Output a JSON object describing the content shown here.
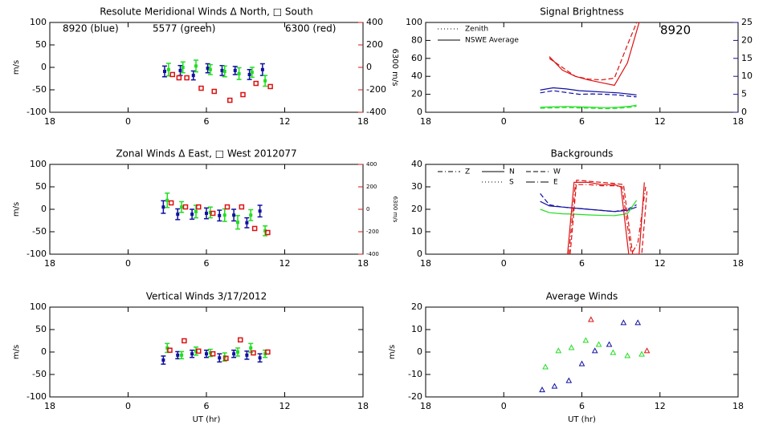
{
  "chart_data": [
    {
      "type": "scatter",
      "title": "Resolute Meridional Winds Δ North, □ South",
      "ylabel": "m/s",
      "y2label": "6300 m/s",
      "xlim": [
        -6,
        18
      ],
      "xticks": [
        {
          "value": -6,
          "label": "18"
        },
        0,
        6,
        12,
        18
      ],
      "ylim": [
        -100,
        100
      ],
      "yticks": [
        -100,
        -50,
        0,
        50,
        100
      ],
      "y2lim": [
        -400,
        400
      ],
      "y2ticks": [
        -400,
        -200,
        0,
        200,
        400
      ],
      "y2color": "#dd1111",
      "annotations": [
        {
          "text": "8920 (blue)",
          "color": "#1010a0"
        },
        {
          "text": "5577 (green)",
          "color": "#22dd22"
        },
        {
          "text": "6300 (red)",
          "color": "#dd1111"
        }
      ],
      "series": [
        {
          "color": "#1010a0",
          "marker": "square",
          "x": [
            2.8,
            4.0,
            5.0,
            6.1,
            7.2,
            8.2,
            9.3,
            10.3
          ],
          "values": [
            -9,
            -7,
            -18,
            -2,
            -7,
            -7,
            -16,
            -5
          ],
          "errors": [
            12,
            11,
            10,
            10,
            11,
            9,
            11,
            13
          ]
        },
        {
          "color": "#22dd22",
          "marker": "square",
          "x": [
            3.1,
            4.2,
            5.2,
            6.3,
            7.4,
            8.5,
            9.5,
            10.5
          ],
          "values": [
            -5,
            0,
            3,
            -5,
            -9,
            -14,
            -11,
            -30
          ],
          "errors": [
            14,
            12,
            13,
            11,
            12,
            13,
            11,
            12
          ]
        },
        {
          "color": "#dd1111",
          "marker": "square-open",
          "axis": "y2",
          "x": [
            3.4,
            3.9,
            4.5,
            5.6,
            6.6,
            7.8,
            8.8,
            9.8,
            10.9
          ],
          "values": [
            -64,
            -93,
            -93,
            -186,
            -214,
            -293,
            -243,
            -143,
            -171
          ]
        }
      ]
    },
    {
      "type": "line",
      "title": "Signal Brightness",
      "xlim": [
        -6,
        18
      ],
      "xticks": [
        {
          "value": -6,
          "label": "18"
        },
        0,
        6,
        12,
        18
      ],
      "ylim": [
        0,
        100
      ],
      "yticks": [
        0,
        20,
        40,
        60,
        80,
        100
      ],
      "y2lim": [
        0,
        25
      ],
      "y2ticks": [
        0,
        5,
        10,
        15,
        20,
        25
      ],
      "y2color": "#1010a0",
      "legend": [
        {
          "label": "Zenith",
          "dash": "dotted"
        },
        {
          "label": "NSWE Average",
          "dash": "solid"
        }
      ],
      "annotations": [
        {
          "text": "8920",
          "color": "#1010a0"
        }
      ],
      "series": [
        {
          "color": "#dd1111",
          "dash": "solid",
          "x": [
            3.5,
            4.5,
            5.5,
            6.5,
            7.5,
            8.5,
            9.5,
            10.5
          ],
          "values": [
            62,
            47,
            40,
            36,
            33,
            30,
            55,
            105
          ]
        },
        {
          "color": "#dd1111",
          "dash": "dashed",
          "x": [
            3.5,
            4.5,
            5.5,
            6.5,
            7.5,
            8.5,
            9.5,
            10.5
          ],
          "values": [
            60,
            50,
            40,
            37,
            36,
            38,
            75,
            110
          ]
        },
        {
          "color": "#1010a0",
          "dash": "solid",
          "axis": "y2",
          "x": [
            2.8,
            3.8,
            4.8,
            5.8,
            6.8,
            7.8,
            8.8,
            9.8,
            10.2
          ],
          "values": [
            6.2,
            6.8,
            6.5,
            6.0,
            5.8,
            5.6,
            5.4,
            5.0,
            4.8
          ]
        },
        {
          "color": "#1010a0",
          "dash": "dashed",
          "axis": "y2",
          "x": [
            2.8,
            3.8,
            4.8,
            5.8,
            6.8,
            7.8,
            8.8,
            9.8,
            10.2
          ],
          "values": [
            5.4,
            6.0,
            5.5,
            5.0,
            5.1,
            5.0,
            4.8,
            4.4,
            4.3
          ]
        },
        {
          "color": "#22dd22",
          "dash": "solid",
          "axis": "y2",
          "x": [
            2.8,
            3.8,
            4.8,
            5.8,
            6.8,
            7.8,
            8.8,
            9.8,
            10.2
          ],
          "values": [
            1.4,
            1.5,
            1.6,
            1.5,
            1.4,
            1.3,
            1.4,
            1.7,
            2.0
          ]
        },
        {
          "color": "#22dd22",
          "dash": "dashed",
          "axis": "y2",
          "x": [
            2.8,
            3.8,
            4.8,
            5.8,
            6.8,
            7.8,
            8.8,
            9.8,
            10.2
          ],
          "values": [
            1.1,
            1.2,
            1.3,
            1.2,
            1.1,
            1.0,
            1.1,
            1.4,
            1.7
          ]
        }
      ]
    },
    {
      "type": "scatter",
      "title": "Zonal Winds Δ East, □ West 2012077",
      "ylabel": "m/s",
      "y2label": "6300 m/s",
      "xlim": [
        -6,
        18
      ],
      "xticks": [
        {
          "value": -6,
          "label": "18"
        },
        0,
        6,
        12,
        18
      ],
      "ylim": [
        -100,
        100
      ],
      "yticks": [
        -100,
        -50,
        0,
        50,
        100
      ],
      "y2lim": [
        -400,
        400
      ],
      "y2ticks": [
        -400,
        -200,
        0,
        200,
        400
      ],
      "y2color": "#dd1111",
      "series": [
        {
          "color": "#1010a0",
          "marker": "square",
          "x": [
            2.7,
            3.8,
            4.9,
            6.0,
            7.0,
            8.1,
            9.1,
            10.1
          ],
          "values": [
            5,
            -11,
            -11,
            -9,
            -14,
            -13,
            -30,
            -4
          ],
          "errors": [
            14,
            12,
            11,
            12,
            12,
            13,
            11,
            13
          ]
        },
        {
          "color": "#22dd22",
          "marker": "square",
          "x": [
            3.0,
            4.1,
            5.2,
            6.3,
            7.4,
            8.4,
            9.4,
            10.5
          ],
          "values": [
            20,
            5,
            -5,
            -7,
            -13,
            -29,
            -13,
            -48
          ],
          "errors": [
            16,
            12,
            14,
            12,
            14,
            15,
            12,
            11
          ]
        },
        {
          "color": "#dd1111",
          "marker": "square-open",
          "axis": "y2",
          "x": [
            3.3,
            4.4,
            5.4,
            6.5,
            7.6,
            8.7,
            9.7,
            10.7
          ],
          "values": [
            57,
            21,
            21,
            -36,
            21,
            21,
            -171,
            -207
          ]
        }
      ]
    },
    {
      "type": "line",
      "title": "Backgrounds",
      "xlim": [
        -6,
        18
      ],
      "xticks": [
        {
          "value": -6,
          "label": "18"
        },
        0,
        6,
        12,
        18
      ],
      "ylim": [
        0,
        40
      ],
      "yticks": [
        0,
        10,
        20,
        30,
        40
      ],
      "legend": [
        {
          "label": "Z",
          "dash": "dashdot"
        },
        {
          "label": "N",
          "dash": "solid"
        },
        {
          "label": "W",
          "dash": "dashed"
        },
        {
          "label": "S",
          "dash": "dotted"
        },
        {
          "label": "E",
          "dash": "longdashdot"
        }
      ],
      "series": [
        {
          "color": "#1010a0",
          "dash": "solid",
          "x": [
            2.8,
            3.5,
            4.5,
            5.5,
            6.5,
            7.5,
            8.5,
            9.5,
            10.2
          ],
          "values": [
            23.5,
            21.5,
            21,
            20.5,
            20,
            19.5,
            19,
            19.5,
            21
          ]
        },
        {
          "color": "#1010a0",
          "dash": "dashed",
          "x": [
            2.8,
            3.5,
            4.5,
            5.5,
            6.5,
            7.5,
            8.5,
            9.5,
            10.2
          ],
          "values": [
            27,
            22,
            21,
            20.5,
            20,
            19.5,
            19,
            20,
            22
          ]
        },
        {
          "color": "#22dd22",
          "dash": "solid",
          "x": [
            2.8,
            3.5,
            4.5,
            5.5,
            6.5,
            7.5,
            8.5,
            9.5,
            10.2
          ],
          "values": [
            20,
            18.5,
            18,
            17.8,
            17.5,
            17.3,
            17.2,
            18,
            24
          ]
        },
        {
          "color": "#dd1111",
          "dash": "solid",
          "x": [
            4.9,
            5.4,
            6.5,
            7.5,
            8.5,
            9.0,
            9.6,
            10.4,
            10.8
          ],
          "values": [
            0,
            32,
            32,
            31,
            31,
            30,
            0,
            0,
            32
          ]
        },
        {
          "color": "#dd1111",
          "dash": "dashed",
          "x": [
            5.1,
            5.6,
            6.5,
            7.5,
            8.5,
            9.2,
            9.9,
            10.6,
            11.0
          ],
          "values": [
            0,
            33,
            32.5,
            32,
            31.5,
            31,
            0,
            0,
            28
          ]
        },
        {
          "color": "#dd1111",
          "dash": "dashdot",
          "x": [
            5.0,
            5.5,
            6.5,
            7.5,
            8.5,
            9.1,
            9.8,
            10.3,
            10.9
          ],
          "values": [
            0,
            31,
            31,
            30.5,
            30.5,
            30,
            0,
            5,
            30
          ]
        }
      ]
    },
    {
      "type": "scatter",
      "title": "Vertical Winds 3/17/2012",
      "ylabel": "m/s",
      "xlabel": "UT (hr)",
      "xlim": [
        -6,
        18
      ],
      "xticks": [
        {
          "value": -6,
          "label": "18"
        },
        0,
        6,
        12,
        18
      ],
      "ylim": [
        -100,
        100
      ],
      "yticks": [
        -100,
        -50,
        0,
        50,
        100
      ],
      "series": [
        {
          "color": "#1010a0",
          "marker": "square",
          "x": [
            2.7,
            3.8,
            4.9,
            6.0,
            7.0,
            8.1,
            9.1,
            10.1
          ],
          "values": [
            -18,
            -7,
            -4,
            -4,
            -13,
            -4,
            -7,
            -13
          ],
          "errors": [
            9,
            8,
            8,
            8,
            9,
            8,
            9,
            9
          ]
        },
        {
          "color": "#22dd22",
          "marker": "square",
          "x": [
            3.0,
            4.1,
            5.2,
            6.3,
            7.4,
            8.4,
            9.4,
            10.5
          ],
          "values": [
            9,
            -7,
            2,
            -2,
            -11,
            0,
            9,
            -4
          ],
          "errors": [
            10,
            8,
            9,
            8,
            9,
            9,
            10,
            8
          ]
        },
        {
          "color": "#dd1111",
          "marker": "square-open",
          "x": [
            3.2,
            4.3,
            5.4,
            6.5,
            7.5,
            8.6,
            9.6,
            10.7
          ],
          "values": [
            4,
            25,
            2,
            -4,
            -14,
            27,
            -2,
            0
          ]
        }
      ]
    },
    {
      "type": "scatter",
      "title": "Average Winds",
      "ylabel": "m/s",
      "xlabel": "UT (hr)",
      "xlim": [
        -6,
        18
      ],
      "xticks": [
        {
          "value": -6,
          "label": "18"
        },
        0,
        6,
        12,
        18
      ],
      "ylim": [
        -20,
        20
      ],
      "yticks": [
        -20,
        -10,
        0,
        10,
        20
      ],
      "series": [
        {
          "color": "#1010a0",
          "marker": "triangle",
          "x": [
            2.95,
            3.9,
            5.0,
            6.0,
            7.0,
            8.1,
            9.2,
            10.3
          ],
          "values": [
            -17,
            -15.4,
            -12.9,
            -5.4,
            0.4,
            3.2,
            12.9,
            12.9
          ]
        },
        {
          "color": "#22dd22",
          "marker": "triangle",
          "x": [
            3.2,
            4.2,
            5.2,
            6.3,
            7.3,
            8.4,
            9.5,
            10.6
          ],
          "values": [
            -6.8,
            0.4,
            1.8,
            5,
            3.2,
            -0.4,
            -1.8,
            -1.1
          ]
        },
        {
          "color": "#dd1111",
          "marker": "triangle",
          "x": [
            6.7,
            11.0
          ],
          "values": [
            14.3,
            0.4
          ]
        }
      ]
    }
  ]
}
